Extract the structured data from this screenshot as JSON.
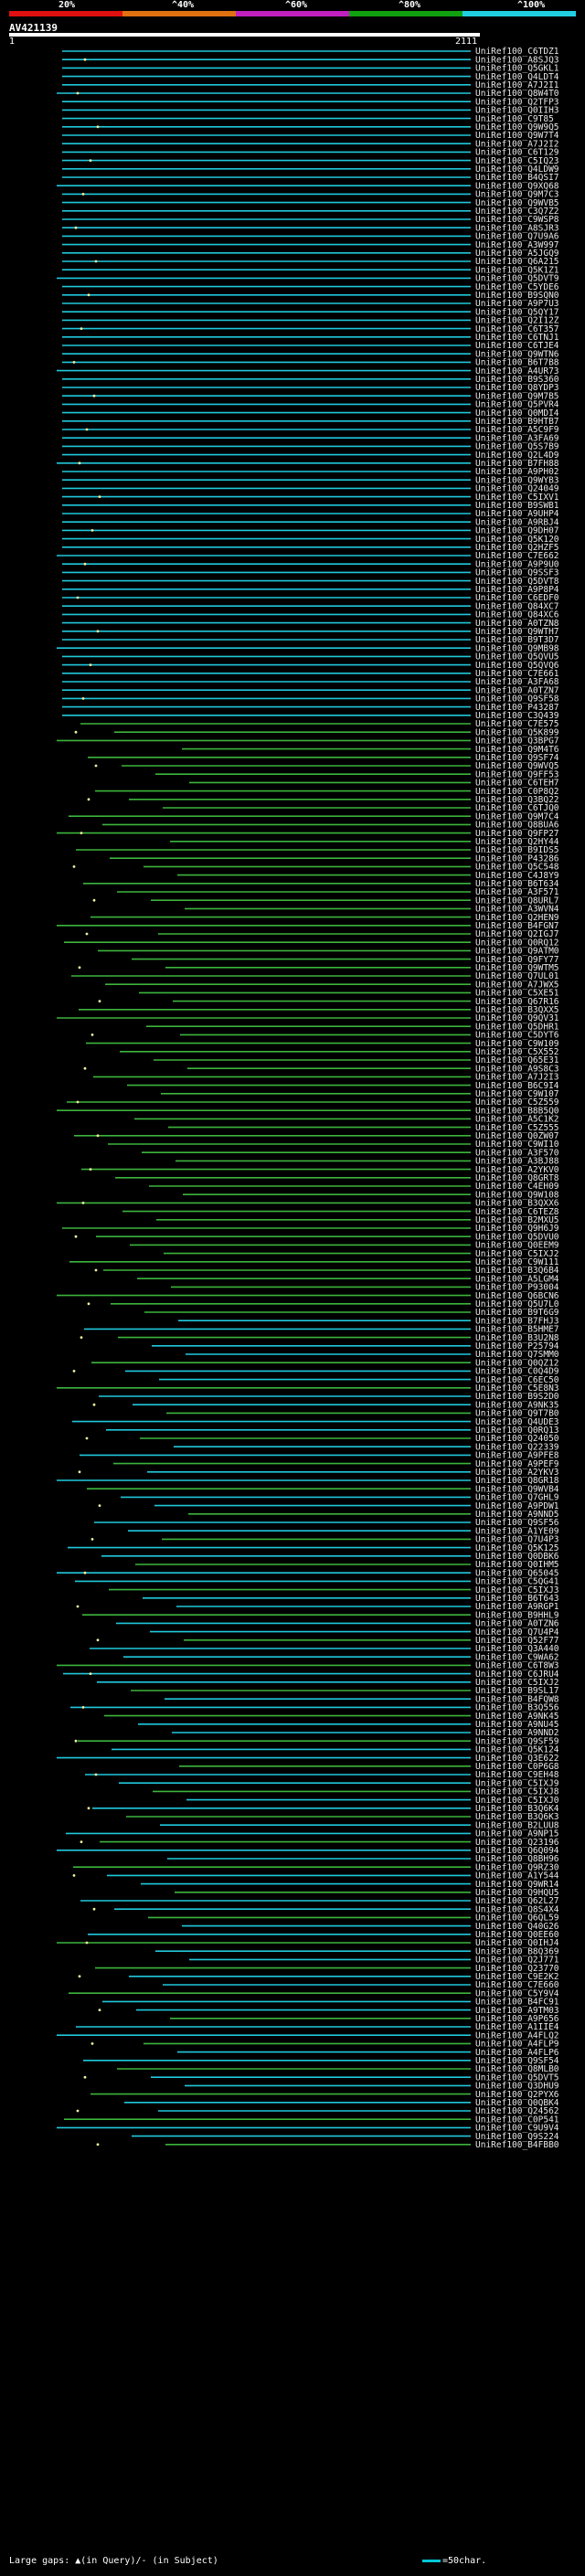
{
  "header": {
    "legend_labels": [
      "20%",
      "^40%",
      "^60%",
      "^80%",
      "^100%"
    ],
    "legend_colors": [
      "#e01010",
      "#e07010",
      "#c020c0",
      "#10a010",
      "#20d0e0"
    ],
    "query_id": "AV421139",
    "axis_start": "1",
    "axis_end": "2111"
  },
  "colors": {
    "high": "#20c8dc",
    "mid": "#3cb43c",
    "marker": "#f0f0a0"
  },
  "hits": [
    "UniRef100_C6TDZ1",
    "UniRef100_A8SJQ3",
    "UniRef100_Q5GKL1",
    "UniRef100_Q4LDT4",
    "UniRef100_A7J2I1",
    "UniRef100_Q8W4T0",
    "UniRef100_Q2TFP3",
    "UniRef100_Q0IIH3",
    "UniRef100_C9T85",
    "UniRef100_Q9W9Q5",
    "UniRef100_Q9W7T4",
    "UniRef100_A7J2I2",
    "UniRef100_C6T129",
    "UniRef100_C5IQ23",
    "UniRef100_Q4LDW9",
    "UniRef100_B4QSI7",
    "UniRef100_Q9XQ68",
    "UniRef100_Q9M7C3",
    "UniRef100_Q9WVB5",
    "UniRef100_C3Q7Z2",
    "UniRef100_C9WSP8",
    "UniRef100_A8SJR3",
    "UniRef100_Q7U9A6",
    "UniRef100_A3W997",
    "UniRef100_A5JGQ9",
    "UniRef100_Q6A215",
    "UniRef100_Q5K1Z1",
    "UniRef100_Q5DVT9",
    "UniRef100_C5YDE6",
    "UniRef100_B9SQN0",
    "UniRef100_A9P7U3",
    "UniRef100_Q5QY17",
    "UniRef100_Q2I12Z",
    "UniRef100_C6T357",
    "UniRef100_C6TNJ1",
    "UniRef100_C6TJE4",
    "UniRef100_Q9WTN6",
    "UniRef100_B6T7B8",
    "UniRef100_A4UR73",
    "UniRef100_B9S360",
    "UniRef100_Q8YDP3",
    "UniRef100_Q9M7B5",
    "UniRef100_Q5PVR4",
    "UniRef100_Q0MDI4",
    "UniRef100_B9HTB7",
    "UniRef100_A5C9F9",
    "UniRef100_A3FA69",
    "UniRef100_Q5S7B9",
    "UniRef100_Q2L4D9",
    "UniRef100_B7FH88",
    "UniRef100_A9PH02",
    "UniRef100_Q9WYB3",
    "UniRef100_Q24049",
    "UniRef100_C5IXV1",
    "UniRef100_B9SWB1",
    "UniRef100_A9UHP4",
    "UniRef100_A9RBJ4",
    "UniRef100_Q9DH07",
    "UniRef100_Q5K120",
    "UniRef100_Q2HZF5",
    "UniRef100_C7E662",
    "UniRef100_A9P9U0",
    "UniRef100_Q9SSF3",
    "UniRef100_Q5DVT8",
    "UniRef100_A9P8P4",
    "UniRef100_C6EDF0",
    "UniRef100_Q84XC7",
    "UniRef100_Q84XC6",
    "UniRef100_A0TZN8",
    "UniRef100_Q9WTH7",
    "UniRef100_B9T3D7",
    "UniRef100_Q9MB98",
    "UniRef100_Q5QVU5",
    "UniRef100_Q5QVQ6",
    "UniRef100_C7E661",
    "UniRef100_A3FA68",
    "UniRef100_A0TZN7",
    "UniRef100_Q9SF58",
    "UniRef100_P43287",
    "UniRef100_C3Q439",
    "UniRef100_C7E575",
    "UniRef100_Q5K899",
    "UniRef100_Q3BPG7",
    "UniRef100_Q9M4T6",
    "UniRef100_Q9SF74",
    "UniRef100_Q9WVQ5",
    "UniRef100_Q9FF53",
    "UniRef100_C6TEH7",
    "UniRef100_C0P8Q2",
    "UniRef100_Q3BQ22",
    "UniRef100_C6TJQ0",
    "UniRef100_Q9M7C4",
    "UniRef100_Q8BUA6",
    "UniRef100_Q9FP27",
    "UniRef100_Q2HY44",
    "UniRef100_B9IDS5",
    "UniRef100_P43286",
    "UniRef100_Q5C548",
    "UniRef100_C4J8Y9",
    "UniRef100_B6T634",
    "UniRef100_A3F571",
    "UniRef100_Q8URL7",
    "UniRef100_A3WVN4",
    "UniRef100_Q2HEN9",
    "UniRef100_B4FGN7",
    "UniRef100_Q2IGJ7",
    "UniRef100_Q0RQ12",
    "UniRef100_Q9ATM0",
    "UniRef100_Q9FY77",
    "UniRef100_Q9WTM5",
    "UniRef100_Q7UL01",
    "UniRef100_A7JWX5",
    "UniRef100_C5XE51",
    "UniRef100_Q67R16",
    "UniRef100_B3QXX5",
    "UniRef100_Q9QV31",
    "UniRef100_Q5DHR1",
    "UniRef100_C5DYT6",
    "UniRef100_C9W109",
    "UniRef100_C5X552",
    "UniRef100_Q65E31",
    "UniRef100_A9S8C3",
    "UniRef100_A7J2I3",
    "UniRef100_B6C9I4",
    "UniRef100_C9W107",
    "UniRef100_C5Z559",
    "UniRef100_B8B5Q0",
    "UniRef100_A5C1K2",
    "UniRef100_C5Z555",
    "UniRef100_Q0ZW07",
    "UniRef100_C9WI10",
    "UniRef100_A3F570",
    "UniRef100_A3BJ88",
    "UniRef100_A2YKV0",
    "UniRef100_Q8GRT8",
    "UniRef100_C4EH09",
    "UniRef100_Q9W108",
    "UniRef100_B3QXX6",
    "UniRef100_C6TEZ8",
    "UniRef100_B2MXU5",
    "UniRef100_Q9H6J9",
    "UniRef100_Q5DVU0",
    "UniRef100_Q0EEM9",
    "UniRef100_C5IXJ2",
    "UniRef100_C9W111",
    "UniRef100_B3Q6B4",
    "UniRef100_A5LGM4",
    "UniRef100_P93004",
    "UniRef100_Q6BCN6",
    "UniRef100_Q5U7L0",
    "UniRef100_B9T6G9",
    "UniRef100_B7FHJ3",
    "UniRef100_B5HME7",
    "UniRef100_B3U2N8",
    "UniRef100_P25794",
    "UniRef100_Q7SMM0",
    "UniRef100_Q0QZ12",
    "UniRef100_C0Q4D9",
    "UniRef100_C6EC50",
    "UniRef100_C5E8N3",
    "UniRef100_B9S2D0",
    "UniRef100_A9NK35",
    "UniRef100_Q9T7B0",
    "UniRef100_Q4UDE3",
    "UniRef100_Q0RQ13",
    "UniRef100_Q24050",
    "UniRef100_Q22339",
    "UniRef100_A9PFE8",
    "UniRef100_A9PEF9",
    "UniRef100_A2YKV3",
    "UniRef100_Q8GR18",
    "UniRef100_Q9WVB4",
    "UniRef100_Q7GHL9",
    "UniRef100_A9PDW1",
    "UniRef100_A9NND5",
    "UniRef100_Q9SF56",
    "UniRef100_A1YE09",
    "UniRef100_Q7U4P3",
    "UniRef100_Q5K125",
    "UniRef100_Q0DBK6",
    "UniRef100_Q0IHM5",
    "UniRef100_Q65045",
    "UniRef100_C5QG41",
    "UniRef100_C5IXJ3",
    "UniRef100_B6T643",
    "UniRef100_A9RGP1",
    "UniRef100_B9HHL9",
    "UniRef100_A0TZN6",
    "UniRef100_Q7U4P4",
    "UniRef100_Q52F77",
    "UniRef100_Q3A440",
    "UniRef100_C9WA62",
    "UniRef100_C6T8W3",
    "UniRef100_C6JRU4",
    "UniRef100_C5IXJ2",
    "UniRef100_B9SL17",
    "UniRef100_B4FQW8",
    "UniRef100_B3Q556",
    "UniRef100_A9NK45",
    "UniRef100_A9NU45",
    "UniRef100_A9NND2",
    "UniRef100_Q9SF59",
    "UniRef100_Q5K124",
    "UniRef100_Q3E622",
    "UniRef100_C0P6G8",
    "UniRef100_C9EH48",
    "UniRef100_C5IXJ9",
    "UniRef100_C5IXJ8",
    "UniRef100_C5IXJ0",
    "UniRef100_B3Q6K4",
    "UniRef100_B3Q6K3",
    "UniRef100_B2LUU8",
    "UniRef100_A9NP15",
    "UniRef100_Q23196",
    "UniRef100_Q6Q094",
    "UniRef100_Q8BH96",
    "UniRef100_Q9RZ30",
    "UniRef100_A1Y544",
    "UniRef100_Q9WR14",
    "UniRef100_Q9HQU5",
    "UniRef100_Q62L27",
    "UniRef100_Q8S4X4",
    "UniRef100_Q6QL59",
    "UniRef100_Q40G26",
    "UniRef100_Q0EE60",
    "UniRef100_Q0IHJ4",
    "UniRef100_B8Q369",
    "UniRef100_Q2J771",
    "UniRef100_Q23770",
    "UniRef100_C9E2K2",
    "UniRef100_C7E660",
    "UniRef100_C5Y9V4",
    "UniRef100_B4FC91",
    "UniRef100_A9TM03",
    "UniRef100_A9P656",
    "UniRef100_A1IIE4",
    "UniRef100_A4FLQ2",
    "UniRef100_A4FLP9",
    "UniRef100_A4FLP6",
    "UniRef100_Q9SF54",
    "UniRef100_Q8MLB0",
    "UniRef100_Q5DVT5",
    "UniRef100_Q3DHU9",
    "UniRef100_Q2PYX6",
    "UniRef100_Q0QBK4",
    "UniRef100_Q24562",
    "UniRef100_C0P541",
    "UniRef100_C9U9V4",
    "UniRef100_Q9S224",
    "UniRef100_B4FBB0"
  ],
  "footer": {
    "text": "Large gaps: ▲(in Query)/- (in Subject)",
    "scale": "=50char."
  }
}
